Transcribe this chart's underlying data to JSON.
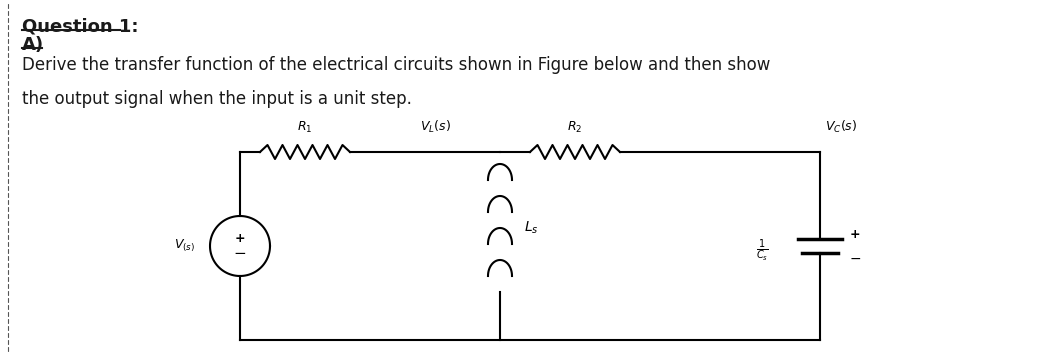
{
  "title_line1": "Question 1:",
  "title_line2": "A)",
  "body_text_line1": "Derive the transfer function of the electrical circuits shown in Figure below and then show",
  "body_text_line2": "the output signal when the input is a unit step.",
  "bg_color": "#ffffff",
  "text_color": "#1a1a1a",
  "font_size_title": 13,
  "font_size_body": 12,
  "circuit": {
    "R1_label": "$R_1$",
    "R2_label": "$R_2$",
    "Vs_label": "$V_{(s)}$",
    "VL_label": "$V_L(s)$",
    "Vc_label": "$V_C(s)$",
    "Ls_label": "$L_s$",
    "Cs_label": "$\\frac{1}{C_s}$",
    "plus": "+",
    "minus": "−"
  }
}
